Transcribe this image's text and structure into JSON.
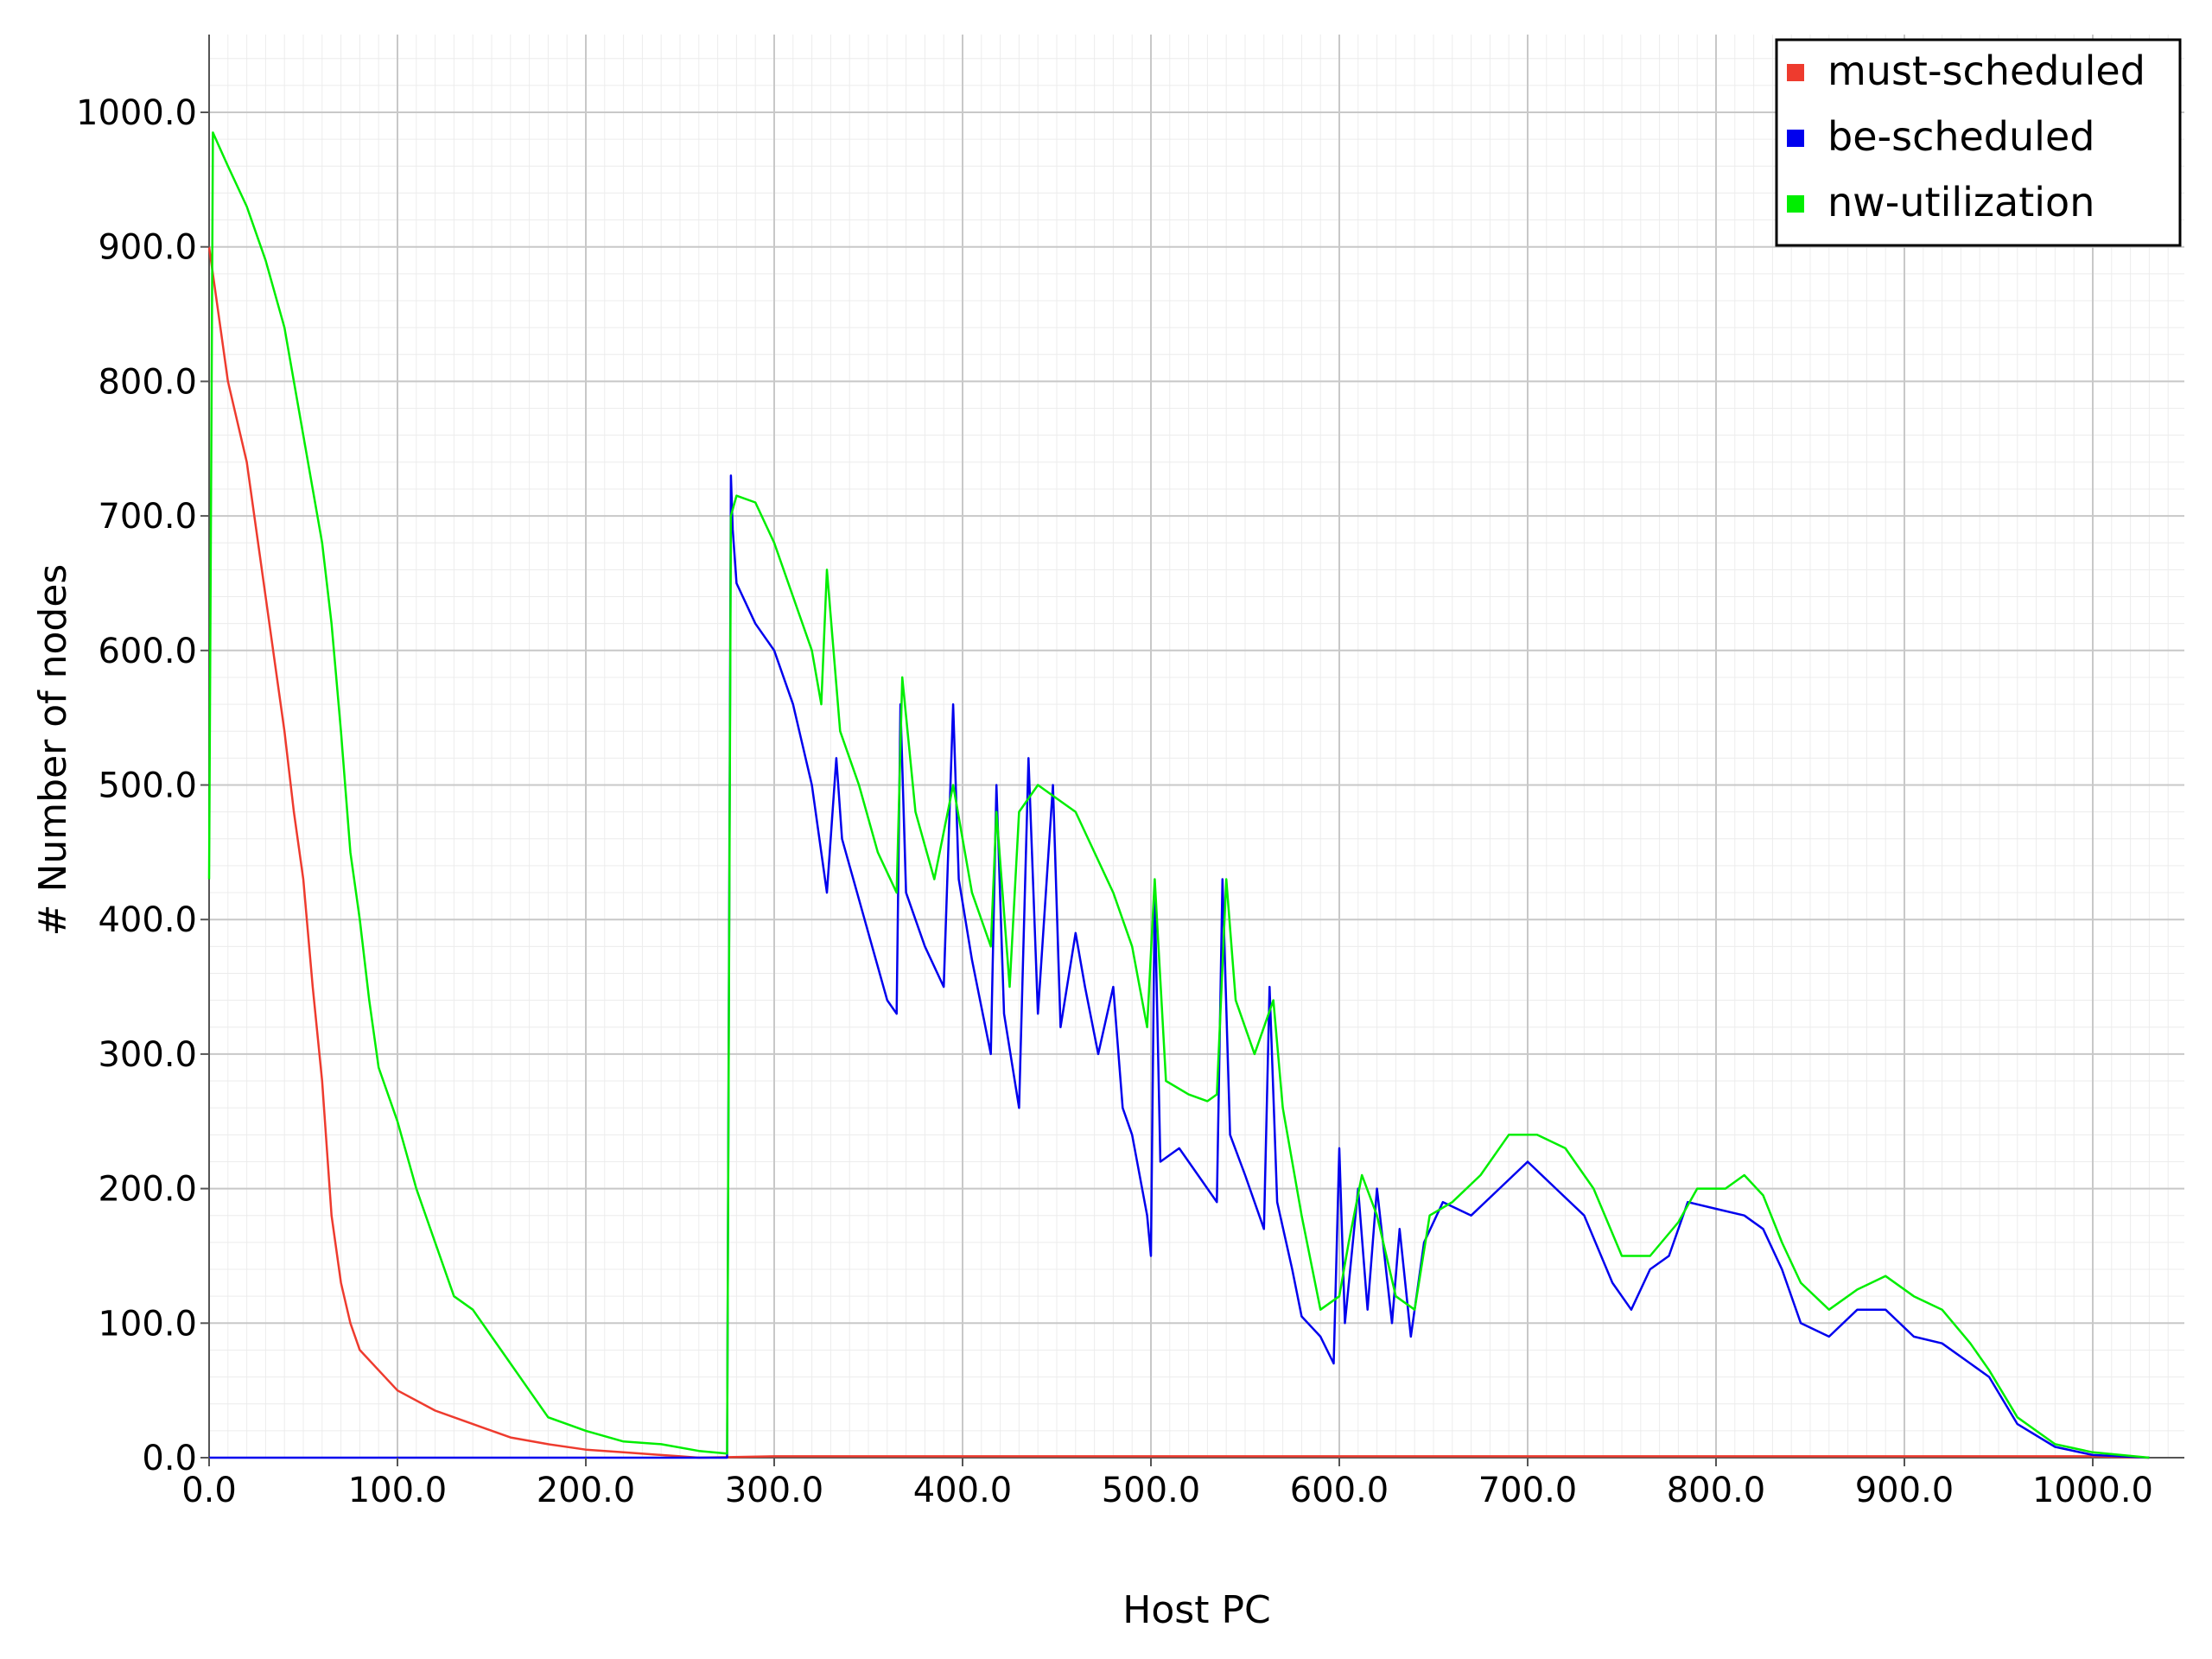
{
  "chart_data": {
    "type": "line",
    "title": "",
    "xlabel": "Host PC",
    "ylabel": "# Number of nodes",
    "xlim": [
      0,
      1050
    ],
    "ylim": [
      0,
      1055
    ],
    "x_ticks": [
      "0.0",
      "100.0",
      "200.0",
      "300.0",
      "400.0",
      "500.0",
      "600.0",
      "700.0",
      "800.0",
      "900.0",
      "1000.0"
    ],
    "y_ticks": [
      "0.0",
      "100.0",
      "200.0",
      "300.0",
      "400.0",
      "500.0",
      "600.0",
      "700.0",
      "800.0",
      "900.0",
      "1000.0"
    ],
    "grid": true,
    "legend_position": "top-right",
    "series": [
      {
        "name": "must-scheduled",
        "color": "#ee3b2e",
        "points": [
          [
            0,
            900
          ],
          [
            5,
            850
          ],
          [
            10,
            800
          ],
          [
            15,
            770
          ],
          [
            20,
            740
          ],
          [
            25,
            690
          ],
          [
            30,
            640
          ],
          [
            35,
            590
          ],
          [
            40,
            540
          ],
          [
            45,
            480
          ],
          [
            50,
            430
          ],
          [
            55,
            350
          ],
          [
            60,
            280
          ],
          [
            65,
            180
          ],
          [
            70,
            130
          ],
          [
            75,
            100
          ],
          [
            80,
            80
          ],
          [
            90,
            65
          ],
          [
            100,
            50
          ],
          [
            120,
            35
          ],
          [
            140,
            25
          ],
          [
            160,
            15
          ],
          [
            180,
            10
          ],
          [
            200,
            6
          ],
          [
            220,
            4
          ],
          [
            240,
            2
          ],
          [
            250,
            1
          ],
          [
            260,
            0
          ],
          [
            300,
            1
          ],
          [
            400,
            1
          ],
          [
            500,
            1
          ],
          [
            600,
            1
          ],
          [
            700,
            1
          ],
          [
            800,
            1
          ],
          [
            900,
            1
          ],
          [
            1000,
            1
          ],
          [
            1030,
            0
          ]
        ]
      },
      {
        "name": "be-scheduled",
        "color": "#0000ee",
        "points": [
          [
            0,
            0
          ],
          [
            275,
            0
          ],
          [
            276,
            370
          ],
          [
            277,
            730
          ],
          [
            278,
            690
          ],
          [
            280,
            650
          ],
          [
            290,
            620
          ],
          [
            300,
            600
          ],
          [
            310,
            560
          ],
          [
            320,
            500
          ],
          [
            328,
            420
          ],
          [
            333,
            520
          ],
          [
            336,
            460
          ],
          [
            340,
            440
          ],
          [
            350,
            390
          ],
          [
            360,
            340
          ],
          [
            365,
            330
          ],
          [
            367,
            560
          ],
          [
            370,
            420
          ],
          [
            380,
            380
          ],
          [
            390,
            350
          ],
          [
            395,
            560
          ],
          [
            398,
            430
          ],
          [
            405,
            370
          ],
          [
            415,
            300
          ],
          [
            418,
            500
          ],
          [
            422,
            330
          ],
          [
            430,
            260
          ],
          [
            435,
            520
          ],
          [
            440,
            330
          ],
          [
            448,
            500
          ],
          [
            452,
            320
          ],
          [
            460,
            390
          ],
          [
            465,
            350
          ],
          [
            472,
            300
          ],
          [
            480,
            350
          ],
          [
            485,
            260
          ],
          [
            490,
            240
          ],
          [
            498,
            180
          ],
          [
            500,
            150
          ],
          [
            502,
            420
          ],
          [
            505,
            220
          ],
          [
            515,
            230
          ],
          [
            525,
            210
          ],
          [
            535,
            190
          ],
          [
            538,
            430
          ],
          [
            542,
            240
          ],
          [
            550,
            210
          ],
          [
            560,
            170
          ],
          [
            563,
            350
          ],
          [
            567,
            190
          ],
          [
            575,
            140
          ],
          [
            580,
            105
          ],
          [
            590,
            90
          ],
          [
            597,
            70
          ],
          [
            600,
            230
          ],
          [
            603,
            100
          ],
          [
            610,
            200
          ],
          [
            615,
            110
          ],
          [
            620,
            200
          ],
          [
            628,
            100
          ],
          [
            632,
            170
          ],
          [
            638,
            90
          ],
          [
            645,
            160
          ],
          [
            655,
            190
          ],
          [
            670,
            180
          ],
          [
            685,
            200
          ],
          [
            700,
            220
          ],
          [
            715,
            200
          ],
          [
            730,
            180
          ],
          [
            745,
            130
          ],
          [
            755,
            110
          ],
          [
            765,
            140
          ],
          [
            775,
            150
          ],
          [
            785,
            190
          ],
          [
            800,
            185
          ],
          [
            815,
            180
          ],
          [
            825,
            170
          ],
          [
            835,
            140
          ],
          [
            845,
            100
          ],
          [
            860,
            90
          ],
          [
            875,
            110
          ],
          [
            890,
            110
          ],
          [
            905,
            90
          ],
          [
            920,
            85
          ],
          [
            935,
            70
          ],
          [
            945,
            60
          ],
          [
            960,
            25
          ],
          [
            980,
            8
          ],
          [
            1000,
            2
          ],
          [
            1030,
            0
          ]
        ]
      },
      {
        "name": "nw-utilization",
        "color": "#00ee00",
        "points": [
          [
            0,
            430
          ],
          [
            2,
            985
          ],
          [
            10,
            960
          ],
          [
            20,
            930
          ],
          [
            30,
            890
          ],
          [
            40,
            840
          ],
          [
            50,
            760
          ],
          [
            55,
            720
          ],
          [
            60,
            680
          ],
          [
            65,
            620
          ],
          [
            70,
            540
          ],
          [
            75,
            450
          ],
          [
            80,
            400
          ],
          [
            85,
            340
          ],
          [
            90,
            290
          ],
          [
            100,
            250
          ],
          [
            110,
            200
          ],
          [
            120,
            160
          ],
          [
            130,
            120
          ],
          [
            140,
            110
          ],
          [
            150,
            90
          ],
          [
            160,
            70
          ],
          [
            170,
            50
          ],
          [
            180,
            30
          ],
          [
            200,
            20
          ],
          [
            220,
            12
          ],
          [
            240,
            10
          ],
          [
            260,
            5
          ],
          [
            275,
            3
          ],
          [
            277,
            700
          ],
          [
            280,
            715
          ],
          [
            290,
            710
          ],
          [
            300,
            680
          ],
          [
            310,
            640
          ],
          [
            320,
            600
          ],
          [
            325,
            560
          ],
          [
            328,
            660
          ],
          [
            335,
            540
          ],
          [
            345,
            500
          ],
          [
            355,
            450
          ],
          [
            365,
            420
          ],
          [
            368,
            580
          ],
          [
            375,
            480
          ],
          [
            385,
            430
          ],
          [
            395,
            500
          ],
          [
            405,
            420
          ],
          [
            415,
            380
          ],
          [
            418,
            480
          ],
          [
            425,
            350
          ],
          [
            430,
            480
          ],
          [
            440,
            500
          ],
          [
            450,
            490
          ],
          [
            460,
            480
          ],
          [
            470,
            450
          ],
          [
            480,
            420
          ],
          [
            490,
            380
          ],
          [
            498,
            320
          ],
          [
            502,
            430
          ],
          [
            508,
            280
          ],
          [
            520,
            270
          ],
          [
            530,
            265
          ],
          [
            535,
            270
          ],
          [
            540,
            430
          ],
          [
            545,
            340
          ],
          [
            555,
            300
          ],
          [
            565,
            340
          ],
          [
            570,
            260
          ],
          [
            580,
            180
          ],
          [
            590,
            110
          ],
          [
            600,
            120
          ],
          [
            605,
            160
          ],
          [
            612,
            210
          ],
          [
            620,
            180
          ],
          [
            630,
            120
          ],
          [
            640,
            110
          ],
          [
            648,
            180
          ],
          [
            660,
            190
          ],
          [
            675,
            210
          ],
          [
            690,
            240
          ],
          [
            705,
            240
          ],
          [
            720,
            230
          ],
          [
            735,
            200
          ],
          [
            750,
            150
          ],
          [
            765,
            150
          ],
          [
            780,
            175
          ],
          [
            790,
            200
          ],
          [
            805,
            200
          ],
          [
            815,
            210
          ],
          [
            825,
            195
          ],
          [
            835,
            160
          ],
          [
            845,
            130
          ],
          [
            860,
            110
          ],
          [
            875,
            125
          ],
          [
            890,
            135
          ],
          [
            905,
            120
          ],
          [
            920,
            110
          ],
          [
            935,
            85
          ],
          [
            945,
            65
          ],
          [
            960,
            30
          ],
          [
            980,
            10
          ],
          [
            1000,
            4
          ],
          [
            1030,
            0
          ]
        ]
      }
    ]
  }
}
